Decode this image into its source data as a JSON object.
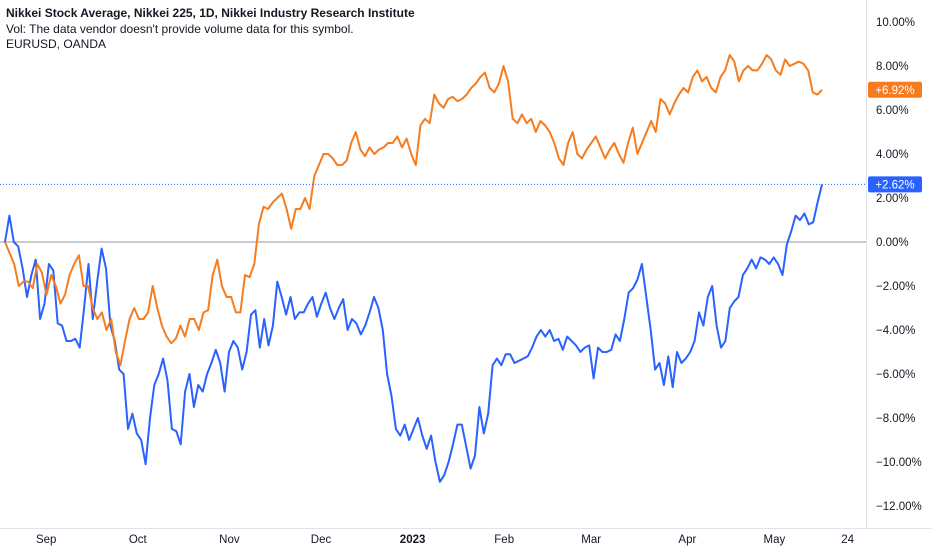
{
  "legend": {
    "title": "Nikkei Stock Average, Nikkei 225, 1D, Nikkei Industry Research Institute",
    "vol_note": "Vol: The data vendor doesn't provide volume data for this symbol.",
    "compare_symbol": "EURUSD, OANDA"
  },
  "chart_data": {
    "type": "line",
    "y_axis": {
      "position": "right",
      "unit": "%",
      "ylim": [
        -12.5,
        10.5
      ],
      "ticks": [
        "10.00%",
        "8.00%",
        "6.00%",
        "4.00%",
        "2.00%",
        "0.00%",
        "−2.00%",
        "−4.00%",
        "−6.00%",
        "−8.00%",
        "−10.00%",
        "−12.00%"
      ],
      "tick_values": [
        10,
        8,
        6,
        4,
        2,
        0,
        -2,
        -4,
        -6,
        -8,
        -10,
        -12
      ]
    },
    "x_axis": {
      "ticks": [
        {
          "label": "Sep",
          "pos": 9,
          "bold": false
        },
        {
          "label": "Oct",
          "pos": 29,
          "bold": false
        },
        {
          "label": "Nov",
          "pos": 49,
          "bold": false
        },
        {
          "label": "Dec",
          "pos": 69,
          "bold": false
        },
        {
          "label": "2023",
          "pos": 89,
          "bold": true
        },
        {
          "label": "Feb",
          "pos": 109,
          "bold": false
        },
        {
          "label": "Mar",
          "pos": 128,
          "bold": false
        },
        {
          "label": "Apr",
          "pos": 149,
          "bold": false
        },
        {
          "label": "May",
          "pos": 168,
          "bold": false
        },
        {
          "label": "24",
          "pos": 184,
          "bold": false
        }
      ],
      "xlim": [
        0,
        188
      ]
    },
    "zero_line": 0,
    "grid": false,
    "series": [
      {
        "name": "Nikkei Stock Average, Nikkei 225",
        "color": "#2962ff",
        "last_value_label": "+2.62%",
        "last_value": 2.62,
        "values": [
          0,
          1.2,
          0,
          -0.2,
          -1.2,
          -2.5,
          -1.5,
          -0.8,
          -3.5,
          -2.8,
          -1.0,
          -1.3,
          -3.7,
          -3.8,
          -4.5,
          -4.5,
          -4.4,
          -4.8,
          -3.0,
          -1.0,
          -3.5,
          -1.8,
          -0.3,
          -1.2,
          -3.8,
          -4.5,
          -5.8,
          -6.0,
          -8.5,
          -7.8,
          -8.7,
          -9.0,
          -10.1,
          -8.0,
          -6.5,
          -6.0,
          -5.3,
          -6.3,
          -8.5,
          -8.6,
          -9.2,
          -6.8,
          -6.0,
          -7.5,
          -6.5,
          -6.8,
          -6.0,
          -5.5,
          -4.9,
          -5.5,
          -6.8,
          -5.0,
          -4.5,
          -4.8,
          -5.8,
          -5.0,
          -3.3,
          -3.1,
          -4.8,
          -3.5,
          -4.7,
          -3.8,
          -1.8,
          -2.5,
          -3.3,
          -2.5,
          -3.5,
          -3.2,
          -3.2,
          -2.8,
          -2.5,
          -3.4,
          -2.8,
          -2.3,
          -3.0,
          -3.5,
          -3.0,
          -2.6,
          -4.0,
          -3.5,
          -3.7,
          -4.2,
          -3.8,
          -3.2,
          -2.5,
          -3.0,
          -4.0,
          -6.0,
          -7.0,
          -8.5,
          -8.8,
          -8.3,
          -9.0,
          -8.5,
          -8.0,
          -8.8,
          -9.4,
          -8.8,
          -10.0,
          -10.9,
          -10.6,
          -10.0,
          -9.2,
          -8.3,
          -8.3,
          -9.3,
          -10.3,
          -9.7,
          -7.5,
          -8.7,
          -7.8,
          -5.6,
          -5.3,
          -5.6,
          -5.1,
          -5.1,
          -5.5,
          -5.4,
          -5.3,
          -5.2,
          -4.8,
          -4.3,
          -4.0,
          -4.3,
          -4.0,
          -4.5,
          -4.4,
          -4.9,
          -4.3,
          -4.5,
          -4.7,
          -5.0,
          -4.8,
          -4.7,
          -6.2,
          -4.8,
          -5.0,
          -5.0,
          -4.9,
          -4.2,
          -4.5,
          -3.5,
          -2.3,
          -2.1,
          -1.7,
          -1.0,
          -2.5,
          -4.0,
          -5.8,
          -5.5,
          -6.5,
          -5.2,
          -6.6,
          -5.0,
          -5.5,
          -5.3,
          -5.0,
          -4.5,
          -3.2,
          -3.8,
          -2.5,
          -2.0,
          -3.8,
          -4.8,
          -4.5,
          -3.0,
          -2.7,
          -2.5,
          -1.5,
          -1.2,
          -0.8,
          -1.2,
          -0.7,
          -0.8,
          -1.0,
          -0.7,
          -1.0,
          -1.5,
          -0.1,
          0.5,
          1.2,
          1.0,
          1.3,
          0.8,
          0.9,
          1.8,
          2.62
        ]
      },
      {
        "name": "EURUSD, OANDA",
        "color": "#f57c1f",
        "last_value_label": "+6.92%",
        "last_value": 6.92,
        "values": [
          0,
          -0.5,
          -1.0,
          -2.0,
          -1.8,
          -1.8,
          -2.1,
          -1.0,
          -1.4,
          -2.4,
          -1.5,
          -2.0,
          -2.8,
          -2.4,
          -1.5,
          -1.0,
          -0.6,
          -2.0,
          -2.0,
          -3.0,
          -3.5,
          -3.2,
          -4.0,
          -3.5,
          -5.0,
          -5.6,
          -4.5,
          -3.5,
          -3.0,
          -3.5,
          -3.5,
          -3.2,
          -2.0,
          -3.0,
          -3.8,
          -4.3,
          -4.6,
          -4.4,
          -3.8,
          -4.3,
          -3.5,
          -3.5,
          -4.0,
          -3.2,
          -3.1,
          -1.5,
          -0.8,
          -2.0,
          -2.5,
          -2.5,
          -3.2,
          -3.2,
          -1.5,
          -1.6,
          -1.0,
          0.8,
          1.6,
          1.5,
          1.8,
          2.0,
          2.2,
          1.5,
          0.6,
          1.5,
          1.5,
          2.0,
          1.5,
          3.0,
          3.5,
          4.0,
          4.0,
          3.8,
          3.5,
          3.5,
          3.7,
          4.5,
          5.0,
          4.2,
          3.9,
          4.3,
          4.0,
          4.2,
          4.3,
          4.5,
          4.5,
          4.8,
          4.3,
          4.7,
          4.0,
          3.5,
          5.3,
          5.6,
          5.4,
          6.7,
          6.3,
          6.1,
          6.5,
          6.6,
          6.4,
          6.5,
          6.7,
          7.0,
          7.2,
          7.5,
          7.7,
          7.0,
          6.8,
          7.2,
          8.0,
          7.3,
          5.6,
          5.4,
          5.8,
          5.4,
          5.6,
          5.0,
          5.5,
          5.3,
          5.0,
          4.5,
          3.8,
          3.5,
          4.5,
          5.0,
          4.0,
          3.8,
          4.2,
          4.5,
          4.8,
          4.3,
          3.8,
          4.2,
          4.5,
          4.0,
          3.6,
          4.5,
          5.2,
          4.0,
          4.5,
          5.0,
          5.5,
          5.0,
          6.5,
          6.3,
          5.8,
          6.3,
          6.7,
          7.0,
          6.8,
          7.5,
          7.8,
          7.3,
          7.5,
          7.0,
          6.8,
          7.5,
          7.8,
          8.5,
          8.2,
          7.3,
          7.8,
          8.0,
          7.8,
          7.8,
          8.1,
          8.5,
          8.3,
          7.8,
          7.6,
          8.3,
          8.0,
          8.1,
          8.2,
          8.1,
          7.8,
          6.8,
          6.7,
          6.92
        ]
      }
    ]
  }
}
